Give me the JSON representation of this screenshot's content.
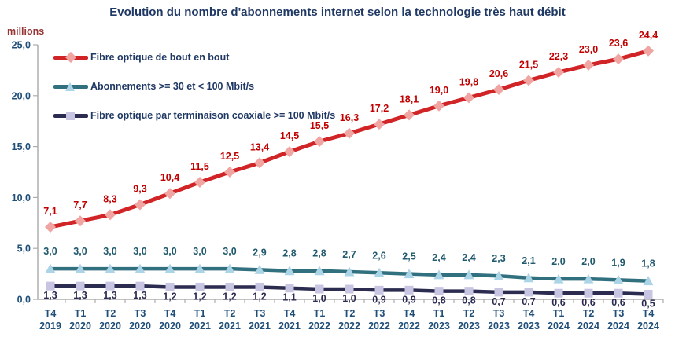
{
  "chart_data": {
    "type": "line",
    "title": "Evolution du nombre d'abonnements internet selon la technologie très haut débit",
    "ylabel": "millions",
    "ylim": [
      0,
      25
    ],
    "grid": false,
    "legend_position": "top-left-inside",
    "axis_color": "#ADADAD",
    "text_colors": {
      "title": "#1F3864",
      "axis": "#1F4E79",
      "ylabel": "#963634",
      "legend": "#1F3864"
    },
    "yticks": [
      {
        "value": 0,
        "label": "0,0"
      },
      {
        "value": 5,
        "label": "5,0"
      },
      {
        "value": 10,
        "label": "10,0"
      },
      {
        "value": 15,
        "label": "15,0"
      },
      {
        "value": 20,
        "label": "20,0"
      },
      {
        "value": 25,
        "label": "25,0"
      }
    ],
    "categories": [
      {
        "quarter": "T4",
        "year": "2019"
      },
      {
        "quarter": "T1",
        "year": "2020"
      },
      {
        "quarter": "T2",
        "year": "2020"
      },
      {
        "quarter": "T3",
        "year": "2020"
      },
      {
        "quarter": "T4",
        "year": "2020"
      },
      {
        "quarter": "T1",
        "year": "2021"
      },
      {
        "quarter": "T2",
        "year": "2021"
      },
      {
        "quarter": "T3",
        "year": "2021"
      },
      {
        "quarter": "T4",
        "year": "2021"
      },
      {
        "quarter": "T1",
        "year": "2022"
      },
      {
        "quarter": "T2",
        "year": "2022"
      },
      {
        "quarter": "T3",
        "year": "2022"
      },
      {
        "quarter": "T4",
        "year": "2022"
      },
      {
        "quarter": "T1",
        "year": "2023"
      },
      {
        "quarter": "T2",
        "year": "2023"
      },
      {
        "quarter": "T3",
        "year": "2023"
      },
      {
        "quarter": "T4",
        "year": "2023"
      },
      {
        "quarter": "T1",
        "year": "2024"
      },
      {
        "quarter": "T2",
        "year": "2024"
      },
      {
        "quarter": "T3",
        "year": "2024"
      },
      {
        "quarter": "T4",
        "year": "2024"
      }
    ],
    "series": [
      {
        "name": "Fibre optique de bout en bout",
        "marker": "diamond",
        "line_color": "#D02427",
        "marker_color": "#F0A5A3",
        "label_color": "#C00000",
        "values": [
          7.1,
          7.7,
          8.3,
          9.3,
          10.4,
          11.5,
          12.5,
          13.4,
          14.5,
          15.5,
          16.3,
          17.2,
          18.1,
          19.0,
          19.8,
          20.6,
          21.5,
          22.3,
          23.0,
          23.6,
          24.4
        ]
      },
      {
        "name": "Abonnements >= 30 et < 100 Mbit/s",
        "marker": "triangle",
        "line_color": "#31707F",
        "marker_color": "#ABD4E6",
        "label_color": "#215A6E",
        "values": [
          3.0,
          3.0,
          3.0,
          3.0,
          3.0,
          3.0,
          3.0,
          2.9,
          2.8,
          2.8,
          2.7,
          2.6,
          2.5,
          2.4,
          2.4,
          2.3,
          2.1,
          2.0,
          2.0,
          1.9,
          1.8
        ]
      },
      {
        "name": "Fibre optique par terminaison coaxiale >= 100 Mbit/s",
        "marker": "square",
        "line_color": "#2C2C51",
        "marker_color": "#C7C5E2",
        "label_color": "#2B2B52",
        "values": [
          1.3,
          1.3,
          1.3,
          1.3,
          1.2,
          1.2,
          1.2,
          1.2,
          1.1,
          1.0,
          1.0,
          0.9,
          0.9,
          0.8,
          0.8,
          0.7,
          0.7,
          0.6,
          0.6,
          0.6,
          0.5
        ]
      }
    ]
  }
}
